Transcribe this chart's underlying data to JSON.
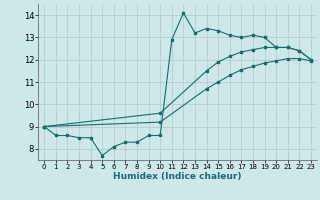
{
  "xlabel": "Humidex (Indice chaleur)",
  "bg_color": "#cce8e8",
  "grid_color": "#b0c8c8",
  "line_color": "#1a6b6b",
  "xlim": [
    -0.5,
    23.5
  ],
  "ylim": [
    7.5,
    14.5
  ],
  "xticks": [
    0,
    1,
    2,
    3,
    4,
    5,
    6,
    7,
    8,
    9,
    10,
    11,
    12,
    13,
    14,
    15,
    16,
    17,
    18,
    19,
    20,
    21,
    22,
    23
  ],
  "yticks": [
    8,
    9,
    10,
    11,
    12,
    13,
    14
  ],
  "curve1_x": [
    0,
    1,
    2,
    3,
    4,
    5,
    6,
    7,
    8,
    9,
    10,
    11,
    12,
    13,
    14,
    15,
    16,
    17,
    18,
    19,
    20,
    21,
    22,
    23
  ],
  "curve1_y": [
    9.0,
    8.6,
    8.6,
    8.5,
    8.5,
    7.7,
    8.1,
    8.3,
    8.3,
    8.6,
    8.6,
    12.9,
    14.1,
    13.2,
    13.4,
    13.3,
    13.1,
    13.0,
    13.1,
    13.0,
    12.55,
    12.55,
    12.4,
    12.0
  ],
  "curve2_x": [
    0,
    10,
    14,
    15,
    16,
    17,
    18,
    19,
    20,
    21,
    22,
    23
  ],
  "curve2_y": [
    9.0,
    9.6,
    11.5,
    11.9,
    12.15,
    12.35,
    12.45,
    12.55,
    12.55,
    12.55,
    12.4,
    12.0
  ],
  "curve3_x": [
    0,
    10,
    14,
    15,
    16,
    17,
    18,
    19,
    20,
    21,
    22,
    23
  ],
  "curve3_y": [
    9.0,
    9.2,
    10.7,
    11.0,
    11.3,
    11.55,
    11.7,
    11.85,
    11.95,
    12.05,
    12.05,
    11.95
  ]
}
